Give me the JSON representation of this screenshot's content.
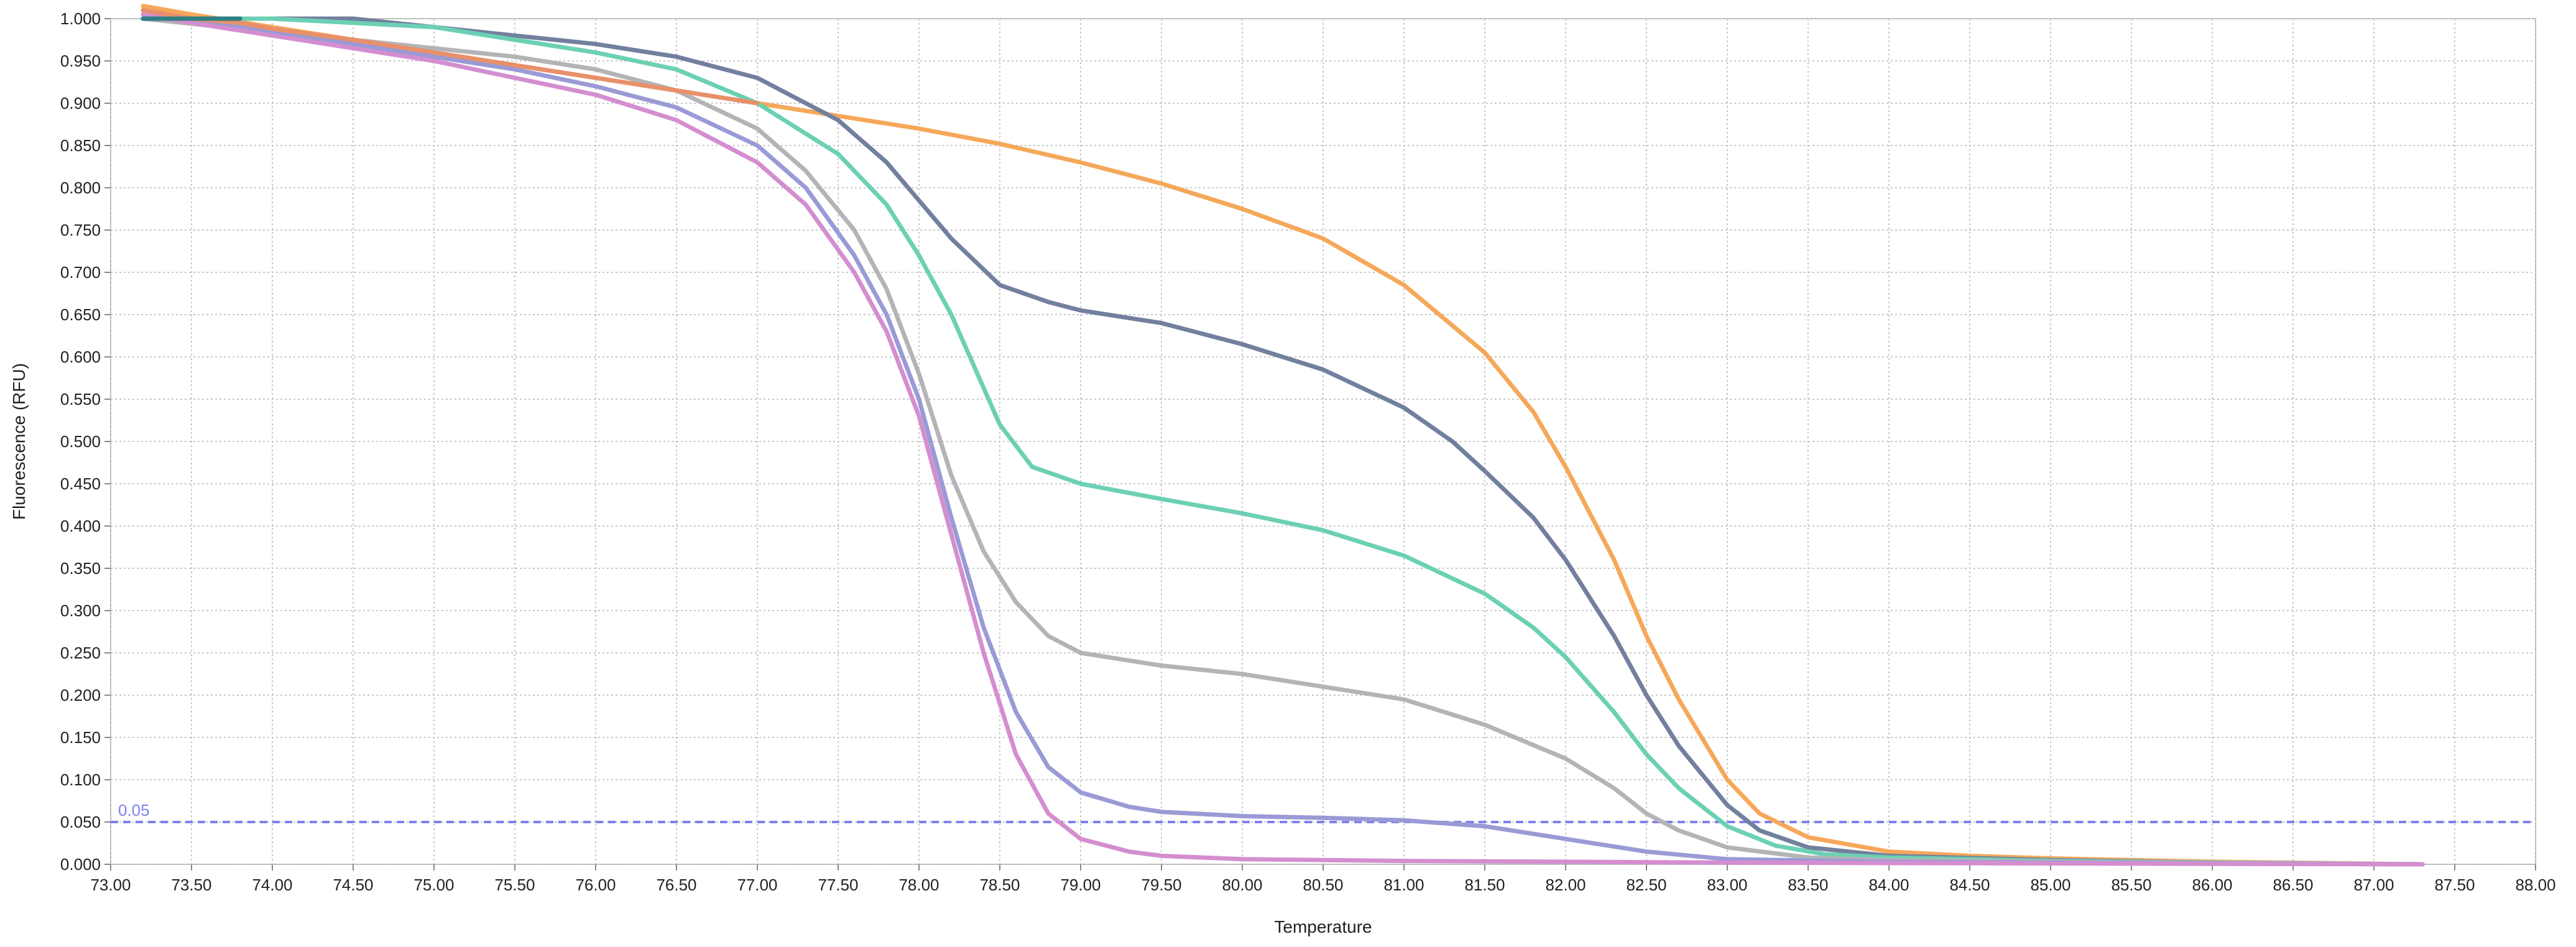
{
  "chart_data": {
    "type": "line",
    "xlabel": "Temperature",
    "ylabel": "Fluorescence (RFU)",
    "xlim": [
      73.0,
      88.0
    ],
    "ylim": [
      0.0,
      1.0
    ],
    "x_ticks": [
      "73.00",
      "73.50",
      "74.00",
      "74.50",
      "75.00",
      "75.50",
      "76.00",
      "76.50",
      "77.00",
      "77.50",
      "78.00",
      "78.50",
      "79.00",
      "79.50",
      "80.00",
      "80.50",
      "81.00",
      "81.50",
      "82.00",
      "82.50",
      "83.00",
      "83.50",
      "84.00",
      "84.50",
      "85.00",
      "85.50",
      "86.00",
      "86.50",
      "87.00",
      "87.50",
      "88.00"
    ],
    "y_ticks": [
      "0.000",
      "0.050",
      "0.100",
      "0.150",
      "0.200",
      "0.250",
      "0.300",
      "0.350",
      "0.400",
      "0.450",
      "0.500",
      "0.550",
      "0.600",
      "0.650",
      "0.700",
      "0.750",
      "0.800",
      "0.850",
      "0.900",
      "0.950",
      "1.000"
    ],
    "grid": true,
    "threshold": {
      "value": 0.05,
      "label": "0.05",
      "color": "#8080f0"
    },
    "series": [
      {
        "color": "#f5a85a",
        "points": [
          [
            73.2,
            1.015
          ],
          [
            73.5,
            1.005
          ],
          [
            74.0,
            0.99
          ],
          [
            74.5,
            0.975
          ],
          [
            75.0,
            0.96
          ],
          [
            75.5,
            0.945
          ],
          [
            76.0,
            0.93
          ],
          [
            76.5,
            0.915
          ],
          [
            77.0,
            0.9
          ],
          [
            77.5,
            0.885
          ],
          [
            78.0,
            0.87
          ],
          [
            78.5,
            0.852
          ],
          [
            79.0,
            0.83
          ],
          [
            79.5,
            0.805
          ],
          [
            80.0,
            0.775
          ],
          [
            80.5,
            0.74
          ],
          [
            81.0,
            0.685
          ],
          [
            81.5,
            0.605
          ],
          [
            81.8,
            0.535
          ],
          [
            82.0,
            0.47
          ],
          [
            82.3,
            0.36
          ],
          [
            82.5,
            0.27
          ],
          [
            82.7,
            0.195
          ],
          [
            83.0,
            0.1
          ],
          [
            83.2,
            0.06
          ],
          [
            83.5,
            0.032
          ],
          [
            84.0,
            0.015
          ],
          [
            84.5,
            0.01
          ],
          [
            85.0,
            0.007
          ],
          [
            86.0,
            0.003
          ],
          [
            87.3,
            0.0
          ]
        ]
      },
      {
        "color": "#72809e",
        "points": [
          [
            73.2,
            1.0
          ],
          [
            74.0,
            1.0
          ],
          [
            74.5,
            1.0
          ],
          [
            75.0,
            0.99
          ],
          [
            75.5,
            0.98
          ],
          [
            76.0,
            0.97
          ],
          [
            76.5,
            0.955
          ],
          [
            77.0,
            0.93
          ],
          [
            77.5,
            0.88
          ],
          [
            77.8,
            0.83
          ],
          [
            78.0,
            0.785
          ],
          [
            78.2,
            0.74
          ],
          [
            78.5,
            0.685
          ],
          [
            78.8,
            0.665
          ],
          [
            79.0,
            0.655
          ],
          [
            79.5,
            0.64
          ],
          [
            80.0,
            0.615
          ],
          [
            80.5,
            0.585
          ],
          [
            81.0,
            0.54
          ],
          [
            81.3,
            0.5
          ],
          [
            81.5,
            0.465
          ],
          [
            81.8,
            0.41
          ],
          [
            82.0,
            0.36
          ],
          [
            82.3,
            0.27
          ],
          [
            82.5,
            0.2
          ],
          [
            82.7,
            0.14
          ],
          [
            83.0,
            0.07
          ],
          [
            83.2,
            0.04
          ],
          [
            83.5,
            0.02
          ],
          [
            84.0,
            0.01
          ],
          [
            85.0,
            0.005
          ],
          [
            86.0,
            0.002
          ],
          [
            87.3,
            0.0
          ]
        ]
      },
      {
        "color": "#6cd0b4",
        "points": [
          [
            73.2,
            1.0
          ],
          [
            74.0,
            1.0
          ],
          [
            74.5,
            0.995
          ],
          [
            75.0,
            0.99
          ],
          [
            75.5,
            0.975
          ],
          [
            76.0,
            0.96
          ],
          [
            76.5,
            0.94
          ],
          [
            77.0,
            0.9
          ],
          [
            77.5,
            0.84
          ],
          [
            77.8,
            0.78
          ],
          [
            78.0,
            0.72
          ],
          [
            78.2,
            0.65
          ],
          [
            78.5,
            0.52
          ],
          [
            78.7,
            0.47
          ],
          [
            79.0,
            0.45
          ],
          [
            79.5,
            0.432
          ],
          [
            80.0,
            0.415
          ],
          [
            80.5,
            0.395
          ],
          [
            81.0,
            0.365
          ],
          [
            81.5,
            0.32
          ],
          [
            81.8,
            0.28
          ],
          [
            82.0,
            0.245
          ],
          [
            82.3,
            0.18
          ],
          [
            82.5,
            0.13
          ],
          [
            82.7,
            0.09
          ],
          [
            83.0,
            0.045
          ],
          [
            83.3,
            0.022
          ],
          [
            83.6,
            0.012
          ],
          [
            84.0,
            0.008
          ],
          [
            85.0,
            0.004
          ],
          [
            86.0,
            0.002
          ],
          [
            87.3,
            0.0
          ]
        ]
      },
      {
        "color": "#b4b4b6",
        "points": [
          [
            73.2,
            1.0
          ],
          [
            73.7,
            0.99
          ],
          [
            74.0,
            0.985
          ],
          [
            74.5,
            0.975
          ],
          [
            75.0,
            0.965
          ],
          [
            75.5,
            0.955
          ],
          [
            76.0,
            0.94
          ],
          [
            76.5,
            0.915
          ],
          [
            77.0,
            0.87
          ],
          [
            77.3,
            0.82
          ],
          [
            77.6,
            0.75
          ],
          [
            77.8,
            0.68
          ],
          [
            78.0,
            0.58
          ],
          [
            78.2,
            0.46
          ],
          [
            78.4,
            0.37
          ],
          [
            78.6,
            0.31
          ],
          [
            78.8,
            0.27
          ],
          [
            79.0,
            0.25
          ],
          [
            79.5,
            0.235
          ],
          [
            80.0,
            0.225
          ],
          [
            80.5,
            0.21
          ],
          [
            81.0,
            0.195
          ],
          [
            81.5,
            0.165
          ],
          [
            82.0,
            0.125
          ],
          [
            82.3,
            0.09
          ],
          [
            82.5,
            0.06
          ],
          [
            82.7,
            0.04
          ],
          [
            83.0,
            0.02
          ],
          [
            83.5,
            0.008
          ],
          [
            84.0,
            0.005
          ],
          [
            85.0,
            0.003
          ],
          [
            87.3,
            0.0
          ]
        ]
      },
      {
        "color": "#9a9ad6",
        "points": [
          [
            73.2,
            1.005
          ],
          [
            73.5,
            1.0
          ],
          [
            74.0,
            0.985
          ],
          [
            74.5,
            0.97
          ],
          [
            75.0,
            0.955
          ],
          [
            75.5,
            0.94
          ],
          [
            76.0,
            0.92
          ],
          [
            76.5,
            0.895
          ],
          [
            77.0,
            0.85
          ],
          [
            77.3,
            0.8
          ],
          [
            77.6,
            0.72
          ],
          [
            77.8,
            0.65
          ],
          [
            78.0,
            0.55
          ],
          [
            78.2,
            0.41
          ],
          [
            78.4,
            0.28
          ],
          [
            78.6,
            0.18
          ],
          [
            78.8,
            0.115
          ],
          [
            79.0,
            0.085
          ],
          [
            79.3,
            0.068
          ],
          [
            79.5,
            0.062
          ],
          [
            80.0,
            0.057
          ],
          [
            80.5,
            0.055
          ],
          [
            81.0,
            0.052
          ],
          [
            81.5,
            0.045
          ],
          [
            82.0,
            0.03
          ],
          [
            82.5,
            0.015
          ],
          [
            83.0,
            0.006
          ],
          [
            84.0,
            0.003
          ],
          [
            85.0,
            0.002
          ],
          [
            87.3,
            0.0
          ]
        ]
      },
      {
        "color": "#d48ed0",
        "points": [
          [
            73.2,
            1.005
          ],
          [
            73.5,
            0.995
          ],
          [
            74.0,
            0.98
          ],
          [
            74.5,
            0.965
          ],
          [
            75.0,
            0.95
          ],
          [
            75.5,
            0.93
          ],
          [
            76.0,
            0.91
          ],
          [
            76.5,
            0.88
          ],
          [
            77.0,
            0.83
          ],
          [
            77.3,
            0.78
          ],
          [
            77.6,
            0.7
          ],
          [
            77.8,
            0.63
          ],
          [
            78.0,
            0.53
          ],
          [
            78.2,
            0.39
          ],
          [
            78.4,
            0.25
          ],
          [
            78.6,
            0.13
          ],
          [
            78.8,
            0.06
          ],
          [
            79.0,
            0.03
          ],
          [
            79.3,
            0.015
          ],
          [
            79.5,
            0.01
          ],
          [
            80.0,
            0.006
          ],
          [
            81.0,
            0.004
          ],
          [
            82.0,
            0.003
          ],
          [
            83.0,
            0.002
          ],
          [
            85.0,
            0.001
          ],
          [
            87.3,
            0.0
          ]
        ]
      },
      {
        "color": "#e8906a",
        "points": [
          [
            73.2,
            1.01
          ],
          [
            73.5,
            1.0
          ],
          [
            73.8,
            0.995
          ],
          [
            74.0,
            0.988
          ],
          [
            74.5,
            0.975
          ],
          [
            75.0,
            0.96
          ],
          [
            75.5,
            0.945
          ],
          [
            76.0,
            0.93
          ],
          [
            76.5,
            0.915
          ],
          [
            77.0,
            0.9
          ]
        ]
      },
      {
        "color": "#2e7f85",
        "points": [
          [
            73.2,
            1.0
          ],
          [
            73.5,
            1.0
          ],
          [
            73.8,
            1.0
          ]
        ]
      }
    ]
  }
}
